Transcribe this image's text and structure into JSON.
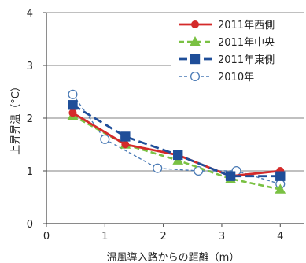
{
  "chart_data": {
    "type": "line",
    "title": "",
    "xlabel": "温風導入路からの距離（m）",
    "ylabel": "上昇昇温（°C）",
    "xlim": [
      0,
      4.4
    ],
    "ylim": [
      0,
      4
    ],
    "x_ticks": [
      0,
      1,
      2,
      3,
      4
    ],
    "y_ticks": [
      0,
      1,
      2,
      3,
      4
    ],
    "grid": "horizontal",
    "legend_position": "top-right",
    "series": [
      {
        "name": "2011年西側",
        "color": "#d42a2a",
        "line_style": "solid",
        "marker": "circle-filled",
        "x": [
          0.45,
          1.35,
          2.25,
          3.15,
          4.0
        ],
        "y": [
          2.1,
          1.5,
          1.3,
          0.9,
          1.0
        ]
      },
      {
        "name": "2011年中央",
        "color": "#7ac143",
        "line_style": "dashed",
        "marker": "triangle-filled",
        "x": [
          0.45,
          1.35,
          2.25,
          3.15,
          4.0
        ],
        "y": [
          2.05,
          1.5,
          1.2,
          0.85,
          0.65
        ]
      },
      {
        "name": "2011年東側",
        "color": "#1f4e99",
        "line_style": "dashed-long",
        "marker": "square-filled",
        "x": [
          0.45,
          1.35,
          2.25,
          3.15,
          4.0
        ],
        "y": [
          2.25,
          1.65,
          1.3,
          0.9,
          0.9
        ]
      },
      {
        "name": "2010年",
        "color": "#4a7ab5",
        "line_style": "dashed-short",
        "marker": "circle-open",
        "x": [
          0.45,
          1.0,
          1.9,
          2.6,
          3.25,
          4.0
        ],
        "y": [
          2.45,
          1.6,
          1.05,
          1.0,
          1.0,
          0.75
        ]
      }
    ]
  }
}
